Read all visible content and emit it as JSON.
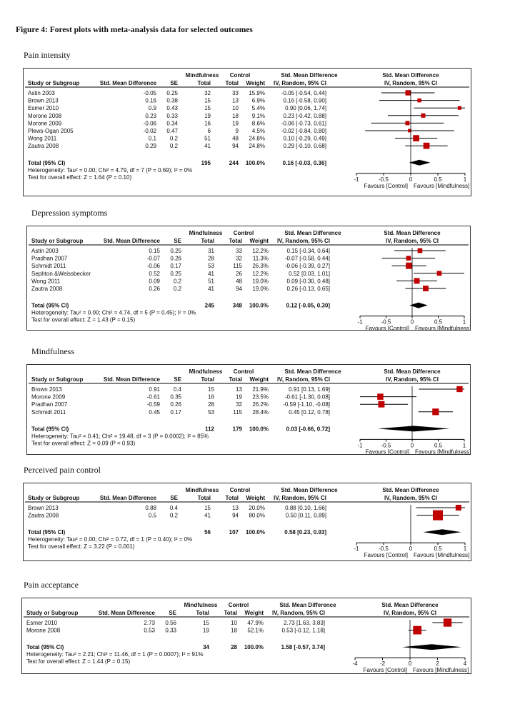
{
  "figure_title": "Figure 4: Forest plots with meta-analysis data for selected outcomes",
  "headers": {
    "group": "Mindfulness",
    "control": "Control",
    "smd_title": "Std. Mean Difference",
    "ci_title": "IV, Random, 95% CI",
    "study": "Study or Subgroup",
    "smd": "Std. Mean Difference",
    "se": "SE",
    "total": "Total",
    "weight": "Weight",
    "plot_title": "Std. Mean Difference",
    "plot_subtitle": "IV, Random, 95% CI",
    "favours_control": "Favours [Control]",
    "favours_mindfulness": "Favours [Mindfulness]"
  },
  "colors": {
    "marker": "#c00000",
    "line": "#000000",
    "axis": "#000000"
  },
  "chart_data": [
    {
      "type": "forest",
      "title": "Pain intensity",
      "axis": {
        "min": -1,
        "max": 1,
        "ticks": [
          "-1",
          "-0.5",
          "0",
          "0.5",
          "1"
        ],
        "tick_values": [
          -1,
          -0.5,
          0,
          0.5,
          1
        ]
      },
      "studies": [
        {
          "name": "Astin 2003",
          "smd": "-0.05",
          "se": "0.25",
          "t1": "32",
          "t2": "33",
          "weight": "15.9%",
          "ci": "-0.05 [-0.54, 0.44]",
          "est": -0.05,
          "lo": -0.54,
          "hi": 0.44,
          "w": 15.9
        },
        {
          "name": "Brown 2013",
          "smd": "0.16",
          "se": "0.38",
          "t1": "15",
          "t2": "13",
          "weight": "6.9%",
          "ci": "0.16 [-0.58, 0.90]",
          "est": 0.16,
          "lo": -0.58,
          "hi": 0.9,
          "w": 6.9
        },
        {
          "name": "Esmer 2010",
          "smd": "0.9",
          "se": "0.43",
          "t1": "15",
          "t2": "10",
          "weight": "5.4%",
          "ci": "0.90 [0.06, 1.74]",
          "est": 0.9,
          "lo": 0.06,
          "hi": 1.74,
          "w": 5.4
        },
        {
          "name": "Morone 2008",
          "smd": "0.23",
          "se": "0.33",
          "t1": "19",
          "t2": "18",
          "weight": "9.1%",
          "ci": "0.23 [-0.42, 0.88]",
          "est": 0.23,
          "lo": -0.42,
          "hi": 0.88,
          "w": 9.1
        },
        {
          "name": "Morone 2009",
          "smd": "-0.06",
          "se": "0.34",
          "t1": "16",
          "t2": "19",
          "weight": "8.6%",
          "ci": "-0.06 [-0.73, 0.61]",
          "est": -0.06,
          "lo": -0.73,
          "hi": 0.61,
          "w": 8.6
        },
        {
          "name": "Plews-Ogan 2005",
          "smd": "-0.02",
          "se": "0.47",
          "t1": "6",
          "t2": "9",
          "weight": "4.5%",
          "ci": "-0.02 [-0.84, 0.80]",
          "est": -0.02,
          "lo": -0.84,
          "hi": 0.8,
          "w": 4.5
        },
        {
          "name": "Wong 2011",
          "smd": "0.1",
          "se": "0.2",
          "t1": "51",
          "t2": "48",
          "weight": "24.8%",
          "ci": "0.10 [-0.29, 0.49]",
          "est": 0.1,
          "lo": -0.29,
          "hi": 0.49,
          "w": 24.8
        },
        {
          "name": "Zautra 2008",
          "smd": "0.29",
          "se": "0.2",
          "t1": "41",
          "t2": "94",
          "weight": "24.8%",
          "ci": "0.29 [-0.10, 0.68]",
          "est": 0.29,
          "lo": -0.1,
          "hi": 0.68,
          "w": 24.8
        }
      ],
      "total": {
        "label": "Total (95% CI)",
        "t1": "195",
        "t2": "244",
        "weight": "100.0%",
        "ci": "0.16 [-0.03, 0.36]",
        "est": 0.16,
        "lo": -0.03,
        "hi": 0.36
      },
      "heterogeneity": "Heterogeneity: Tau² = 0.00; Chi² = 4.79, df = 7 (P = 0.69); I² = 0%",
      "overall_effect": "Test for overall effect: Z = 1.64 (P = 0.10)"
    },
    {
      "type": "forest",
      "title": "Depression symptoms",
      "axis": {
        "min": -1,
        "max": 1,
        "ticks": [
          "-1",
          "-0.5",
          "0",
          "0.5",
          "1"
        ],
        "tick_values": [
          -1,
          -0.5,
          0,
          0.5,
          1
        ]
      },
      "studies": [
        {
          "name": "Astin 2003",
          "smd": "0.15",
          "se": "0.25",
          "t1": "31",
          "t2": "33",
          "weight": "12.2%",
          "ci": "0.15 [-0.34, 0.64]",
          "est": 0.15,
          "lo": -0.34,
          "hi": 0.64,
          "w": 12.2
        },
        {
          "name": "Pradhan 2007",
          "smd": "-0.07",
          "se": "0.26",
          "t1": "28",
          "t2": "32",
          "weight": "11.3%",
          "ci": "-0.07 [-0.58, 0.44]",
          "est": -0.07,
          "lo": -0.58,
          "hi": 0.44,
          "w": 11.3
        },
        {
          "name": "Schmidt 2011",
          "smd": "-0.06",
          "se": "0.17",
          "t1": "53",
          "t2": "115",
          "weight": "26.3%",
          "ci": "-0.06 [-0.39, 0.27]",
          "est": -0.06,
          "lo": -0.39,
          "hi": 0.27,
          "w": 26.3
        },
        {
          "name": "Sephton &Weissbecker",
          "smd": "0.52",
          "se": "0.25",
          "t1": "41",
          "t2": "26",
          "weight": "12.2%",
          "ci": "0.52 [0.03, 1.01]",
          "est": 0.52,
          "lo": 0.03,
          "hi": 1.01,
          "w": 12.2
        },
        {
          "name": "Wong 2011",
          "smd": "0.09",
          "se": "0.2",
          "t1": "51",
          "t2": "48",
          "weight": "19.0%",
          "ci": "0.09 [-0.30, 0.48]",
          "est": 0.09,
          "lo": -0.3,
          "hi": 0.48,
          "w": 19.0
        },
        {
          "name": "Zautra 2008",
          "smd": "0.26",
          "se": "0.2",
          "t1": "41",
          "t2": "94",
          "weight": "19.0%",
          "ci": "0.26 [-0.13, 0.65]",
          "est": 0.26,
          "lo": -0.13,
          "hi": 0.65,
          "w": 19.0
        }
      ],
      "total": {
        "label": "Total (95% CI)",
        "t1": "245",
        "t2": "348",
        "weight": "100.0%",
        "ci": "0.12 [-0.05, 0.30]",
        "est": 0.12,
        "lo": -0.05,
        "hi": 0.3
      },
      "heterogeneity": "Heterogeneity: Tau² = 0.00; Chi² = 4.74, df = 5 (P = 0.45); I² = 0%",
      "overall_effect": "Test for overall effect: Z = 1.43 (P = 0.15)"
    },
    {
      "type": "forest",
      "title": "Mindfulness",
      "axis": {
        "min": -1,
        "max": 1,
        "ticks": [
          "-1",
          "-0.5",
          "0",
          "0.5",
          "1"
        ],
        "tick_values": [
          -1,
          -0.5,
          0,
          0.5,
          1
        ]
      },
      "studies": [
        {
          "name": "Brown 2013",
          "smd": "0.91",
          "se": "0.4",
          "t1": "15",
          "t2": "13",
          "weight": "21.9%",
          "ci": "0.91 [0.13, 1.69]",
          "est": 0.91,
          "lo": 0.13,
          "hi": 1.69,
          "w": 21.9
        },
        {
          "name": "Morone 2009",
          "smd": "-0.61",
          "se": "0.35",
          "t1": "16",
          "t2": "19",
          "weight": "23.5%",
          "ci": "-0.61 [-1.30, 0.08]",
          "est": -0.61,
          "lo": -1.3,
          "hi": 0.08,
          "w": 23.5
        },
        {
          "name": "Pradhan 2007",
          "smd": "-0.59",
          "se": "0.26",
          "t1": "28",
          "t2": "32",
          "weight": "26.2%",
          "ci": "-0.59 [-1.10, -0.08]",
          "est": -0.59,
          "lo": -1.1,
          "hi": -0.08,
          "w": 26.2
        },
        {
          "name": "Schmidt 2011",
          "smd": "0.45",
          "se": "0.17",
          "t1": "53",
          "t2": "115",
          "weight": "28.4%",
          "ci": "0.45 [0.12, 0.78]",
          "est": 0.45,
          "lo": 0.12,
          "hi": 0.78,
          "w": 28.4
        }
      ],
      "total": {
        "label": "Total (95% CI)",
        "t1": "112",
        "t2": "179",
        "weight": "100.0%",
        "ci": "0.03 [-0.66, 0.72]",
        "est": 0.03,
        "lo": -0.66,
        "hi": 0.72
      },
      "heterogeneity": "Heterogeneity: Tau² = 0.41; Chi² = 19.48, df = 3 (P = 0.0002); I² = 85%",
      "overall_effect": "Test for overall effect: Z = 0.09 (P = 0.93)"
    },
    {
      "type": "forest",
      "title": "Perceived pain control",
      "axis": {
        "min": -1,
        "max": 1,
        "ticks": [
          "-1",
          "-0.5",
          "0",
          "0.5",
          "1"
        ],
        "tick_values": [
          -1,
          -0.5,
          0,
          0.5,
          1
        ]
      },
      "studies": [
        {
          "name": "Brown 2013",
          "smd": "0.88",
          "se": "0.4",
          "t1": "15",
          "t2": "13",
          "weight": "20.0%",
          "ci": "0.88 [0.10, 1.66]",
          "est": 0.88,
          "lo": 0.1,
          "hi": 1.66,
          "w": 20.0
        },
        {
          "name": "Zautra 2008",
          "smd": "0.5",
          "se": "0.2",
          "t1": "41",
          "t2": "94",
          "weight": "80.0%",
          "ci": "0.50 [0.11, 0.89]",
          "est": 0.5,
          "lo": 0.11,
          "hi": 0.89,
          "w": 80.0
        }
      ],
      "total": {
        "label": "Total (95% CI)",
        "t1": "56",
        "t2": "107",
        "weight": "100.0%",
        "ci": "0.58 [0.23, 0.93]",
        "est": 0.58,
        "lo": 0.23,
        "hi": 0.93
      },
      "heterogeneity": "Heterogeneity: Tau² = 0.00; Chi² = 0.72, df = 1 (P = 0.40); I² = 0%",
      "overall_effect": "Test for overall effect: Z = 3.22 (P = 0.001)"
    },
    {
      "type": "forest",
      "title": "Pain acceptance",
      "axis": {
        "min": -4,
        "max": 4,
        "ticks": [
          "-4",
          "-2",
          "0",
          "2",
          "4"
        ],
        "tick_values": [
          -4,
          -2,
          0,
          2,
          4
        ]
      },
      "studies": [
        {
          "name": "Esmer 2010",
          "smd": "2.73",
          "se": "0.56",
          "t1": "15",
          "t2": "10",
          "weight": "47.9%",
          "ci": "2.73 [1.63, 3.83]",
          "est": 2.73,
          "lo": 1.63,
          "hi": 3.83,
          "w": 47.9
        },
        {
          "name": "Morone 2008",
          "smd": "0.53",
          "se": "0.33",
          "t1": "19",
          "t2": "18",
          "weight": "52.1%",
          "ci": "0.53 [-0.12, 1.18]",
          "est": 0.53,
          "lo": -0.12,
          "hi": 1.18,
          "w": 52.1
        }
      ],
      "total": {
        "label": "Total (95% CI)",
        "t1": "34",
        "t2": "28",
        "weight": "100.0%",
        "ci": "1.58 [-0.57, 3.74]",
        "est": 1.58,
        "lo": -0.57,
        "hi": 3.74
      },
      "heterogeneity": "Heterogeneity: Tau² = 2.21; Chi² = 11.46, df = 1 (P = 0.0007); I² = 91%",
      "overall_effect": "Test for overall effect: Z = 1.44 (P = 0.15)"
    }
  ]
}
